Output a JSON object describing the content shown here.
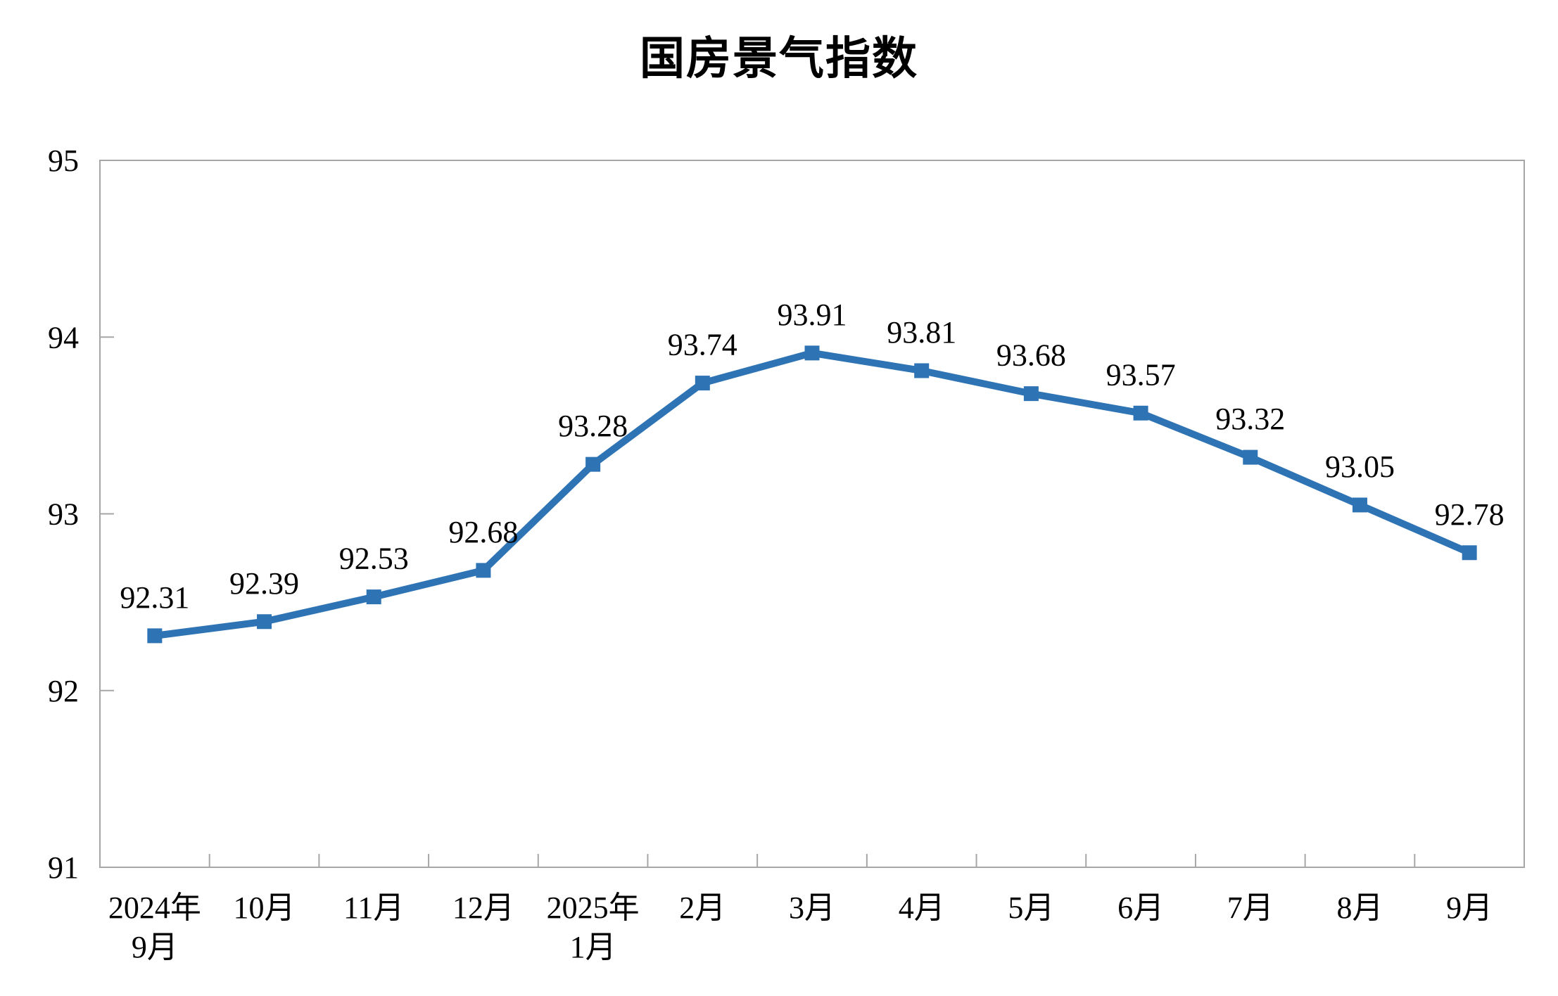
{
  "chart_data": {
    "type": "line",
    "title": "国房景气指数",
    "categories": [
      "2024年\n9月",
      "10月",
      "11月",
      "12月",
      "2025年\n1月",
      "2月",
      "3月",
      "4月",
      "5月",
      "6月",
      "7月",
      "8月",
      "9月"
    ],
    "values": [
      92.31,
      92.39,
      92.53,
      92.68,
      93.28,
      93.74,
      93.91,
      93.81,
      93.68,
      93.57,
      93.32,
      93.05,
      92.78
    ],
    "xlabel": "",
    "ylabel": "",
    "ylim": [
      91,
      95
    ],
    "yticks": [
      91,
      92,
      93,
      94,
      95
    ],
    "grid": false,
    "legend": "none",
    "data_labels": "above",
    "marker": "square",
    "line_color": "#2E74B5",
    "axis_color": "#A6A6A6",
    "text_color": "#000000"
  }
}
